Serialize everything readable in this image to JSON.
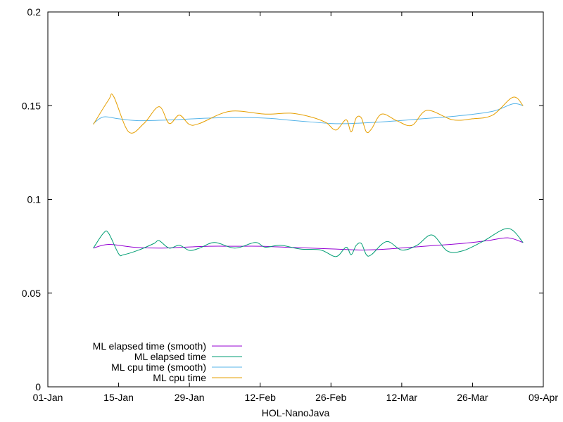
{
  "chart_data": {
    "type": "line",
    "title": "",
    "xlabel": "HOL-NanoJava",
    "ylabel": "",
    "xlim": [
      "2019-01-01",
      "2019-04-09"
    ],
    "ylim": [
      0,
      0.2
    ],
    "x_ticks": [
      {
        "date": "2019-01-01",
        "label": "01-Jan"
      },
      {
        "date": "2019-01-15",
        "label": "15-Jan"
      },
      {
        "date": "2019-01-29",
        "label": "29-Jan"
      },
      {
        "date": "2019-02-12",
        "label": "12-Feb"
      },
      {
        "date": "2019-02-26",
        "label": "26-Feb"
      },
      {
        "date": "2019-03-12",
        "label": "12-Mar"
      },
      {
        "date": "2019-03-26",
        "label": "26-Mar"
      },
      {
        "date": "2019-04-09",
        "label": "09-Apr"
      }
    ],
    "y_ticks": [
      {
        "value": 0,
        "label": "0"
      },
      {
        "value": 0.05,
        "label": "0.05"
      },
      {
        "value": 0.1,
        "label": "0.1"
      },
      {
        "value": 0.15,
        "label": "0.15"
      },
      {
        "value": 0.2,
        "label": "0.2"
      }
    ],
    "grid": false,
    "legend_position": "bottom-left",
    "series": [
      {
        "name": "ML elapsed time (smooth)",
        "color": "#9400d3",
        "x": [
          "2019-01-10",
          "2019-01-13",
          "2019-01-18",
          "2019-01-23",
          "2019-01-28",
          "2019-02-02",
          "2019-02-07",
          "2019-02-12",
          "2019-02-17",
          "2019-02-22",
          "2019-02-27",
          "2019-03-04",
          "2019-03-09",
          "2019-03-14",
          "2019-03-19",
          "2019-03-24",
          "2019-03-29",
          "2019-04-02",
          "2019-04-05"
        ],
        "y": [
          0.074,
          0.076,
          0.0745,
          0.074,
          0.0745,
          0.075,
          0.075,
          0.075,
          0.0745,
          0.074,
          0.0735,
          0.073,
          0.0735,
          0.0745,
          0.0755,
          0.0765,
          0.078,
          0.0795,
          0.077
        ]
      },
      {
        "name": "ML elapsed time",
        "color": "#009e73",
        "x": [
          "2019-01-10",
          "2019-01-12",
          "2019-01-13",
          "2019-01-15",
          "2019-01-16",
          "2019-01-19",
          "2019-01-22",
          "2019-01-23",
          "2019-01-25",
          "2019-01-27",
          "2019-01-29",
          "2019-01-31",
          "2019-02-03",
          "2019-02-07",
          "2019-02-11",
          "2019-02-13",
          "2019-02-16",
          "2019-02-20",
          "2019-02-24",
          "2019-02-27",
          "2019-03-01",
          "2019-03-02",
          "2019-03-03",
          "2019-03-04",
          "2019-03-05",
          "2019-03-06",
          "2019-03-09",
          "2019-03-12",
          "2019-03-15",
          "2019-03-18",
          "2019-03-21",
          "2019-03-24",
          "2019-03-28",
          "2019-04-02",
          "2019-04-05"
        ],
        "y": [
          0.074,
          0.082,
          0.082,
          0.071,
          0.0705,
          0.073,
          0.0765,
          0.078,
          0.074,
          0.0755,
          0.0728,
          0.074,
          0.077,
          0.074,
          0.077,
          0.0745,
          0.0755,
          0.0735,
          0.073,
          0.0695,
          0.0745,
          0.0705,
          0.0755,
          0.0765,
          0.0705,
          0.0705,
          0.0775,
          0.073,
          0.0755,
          0.081,
          0.0725,
          0.0725,
          0.0775,
          0.0845,
          0.077
        ]
      },
      {
        "name": "ML cpu time (smooth)",
        "color": "#56b4e9",
        "x": [
          "2019-01-10",
          "2019-01-12",
          "2019-01-15",
          "2019-01-19",
          "2019-01-26",
          "2019-02-03",
          "2019-02-12",
          "2019-02-19",
          "2019-02-26",
          "2019-03-02",
          "2019-03-09",
          "2019-03-16",
          "2019-03-23",
          "2019-03-30",
          "2019-04-03",
          "2019-04-05"
        ],
        "y": [
          0.1405,
          0.144,
          0.143,
          0.142,
          0.1425,
          0.1435,
          0.1435,
          0.142,
          0.1405,
          0.1405,
          0.1415,
          0.143,
          0.1445,
          0.147,
          0.151,
          0.15
        ]
      },
      {
        "name": "ML cpu time",
        "color": "#e69f00",
        "x": [
          "2019-01-10",
          "2019-01-13",
          "2019-01-14",
          "2019-01-17",
          "2019-01-20",
          "2019-01-23",
          "2019-01-25",
          "2019-01-27",
          "2019-01-29",
          "2019-01-31",
          "2019-02-06",
          "2019-02-13",
          "2019-02-18",
          "2019-02-22",
          "2019-02-25",
          "2019-02-27",
          "2019-03-01",
          "2019-03-02",
          "2019-03-03",
          "2019-03-04",
          "2019-03-05",
          "2019-03-06",
          "2019-03-08",
          "2019-03-11",
          "2019-03-14",
          "2019-03-17",
          "2019-03-22",
          "2019-03-26",
          "2019-03-30",
          "2019-04-03",
          "2019-04-05"
        ],
        "y": [
          0.14,
          0.153,
          0.155,
          0.136,
          0.1405,
          0.1495,
          0.1405,
          0.145,
          0.14,
          0.1405,
          0.147,
          0.1455,
          0.146,
          0.144,
          0.141,
          0.137,
          0.1425,
          0.136,
          0.1435,
          0.1435,
          0.136,
          0.1375,
          0.1455,
          0.142,
          0.1395,
          0.1475,
          0.1425,
          0.143,
          0.145,
          0.1545,
          0.15
        ]
      }
    ]
  }
}
